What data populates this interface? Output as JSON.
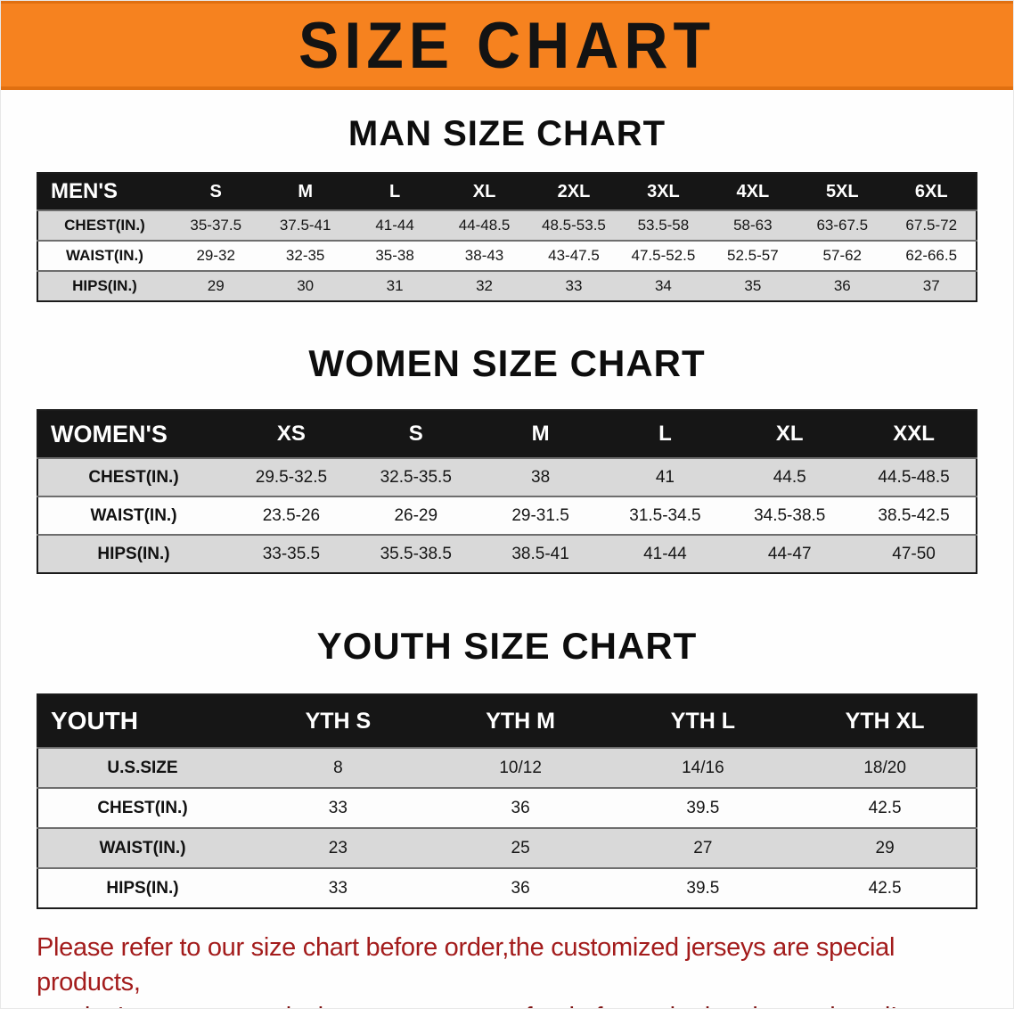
{
  "banner": {
    "title": "SIZE CHART"
  },
  "colors": {
    "banner_bg": "#f6821f",
    "table_header_bg": "#161616",
    "row_alt_bg": "#d9d9d9",
    "footer_text": "#a31c1c"
  },
  "sections": [
    {
      "heading": "MAN SIZE CHART",
      "table": {
        "label": "MEN'S",
        "columns": [
          "S",
          "M",
          "L",
          "XL",
          "2XL",
          "3XL",
          "4XL",
          "5XL",
          "6XL"
        ],
        "rows": [
          {
            "label": "CHEST(IN.)",
            "values": [
              "35-37.5",
              "37.5-41",
              "41-44",
              "44-48.5",
              "48.5-53.5",
              "53.5-58",
              "58-63",
              "63-67.5",
              "67.5-72"
            ]
          },
          {
            "label": "WAIST(IN.)",
            "values": [
              "29-32",
              "32-35",
              "35-38",
              "38-43",
              "43-47.5",
              "47.5-52.5",
              "52.5-57",
              "57-62",
              "62-66.5"
            ]
          },
          {
            "label": "HIPS(IN.)",
            "values": [
              "29",
              "30",
              "31",
              "32",
              "33",
              "34",
              "35",
              "36",
              "37"
            ]
          }
        ]
      }
    },
    {
      "heading": "WOMEN SIZE CHART",
      "table": {
        "label": "WOMEN'S",
        "columns": [
          "XS",
          "S",
          "M",
          "L",
          "XL",
          "XXL"
        ],
        "rows": [
          {
            "label": "CHEST(IN.)",
            "values": [
              "29.5-32.5",
              "32.5-35.5",
              "38",
              "41",
              "44.5",
              "44.5-48.5"
            ]
          },
          {
            "label": "WAIST(IN.)",
            "values": [
              "23.5-26",
              "26-29",
              "29-31.5",
              "31.5-34.5",
              "34.5-38.5",
              "38.5-42.5"
            ]
          },
          {
            "label": "HIPS(IN.)",
            "values": [
              "33-35.5",
              "35.5-38.5",
              "38.5-41",
              "41-44",
              "44-47",
              "47-50"
            ]
          }
        ]
      }
    },
    {
      "heading": "YOUTH SIZE CHART",
      "table": {
        "label": "YOUTH",
        "columns": [
          "YTH S",
          "YTH M",
          "YTH L",
          "YTH XL"
        ],
        "rows": [
          {
            "label": "U.S.SIZE",
            "values": [
              "8",
              "10/12",
              "14/16",
              "18/20"
            ]
          },
          {
            "label": "CHEST(IN.)",
            "values": [
              "33",
              "36",
              "39.5",
              "42.5"
            ]
          },
          {
            "label": "WAIST(IN.)",
            "values": [
              "23",
              "25",
              "27",
              "29"
            ]
          },
          {
            "label": "HIPS(IN.)",
            "values": [
              "33",
              "36",
              "39.5",
              "42.5"
            ]
          }
        ]
      }
    }
  ],
  "footer": {
    "line1": "Please refer to our size chart before order,the customized jerseys are special products,",
    "line2": "we don't accept cancel, change, teturn or refund after order has been placed!"
  }
}
